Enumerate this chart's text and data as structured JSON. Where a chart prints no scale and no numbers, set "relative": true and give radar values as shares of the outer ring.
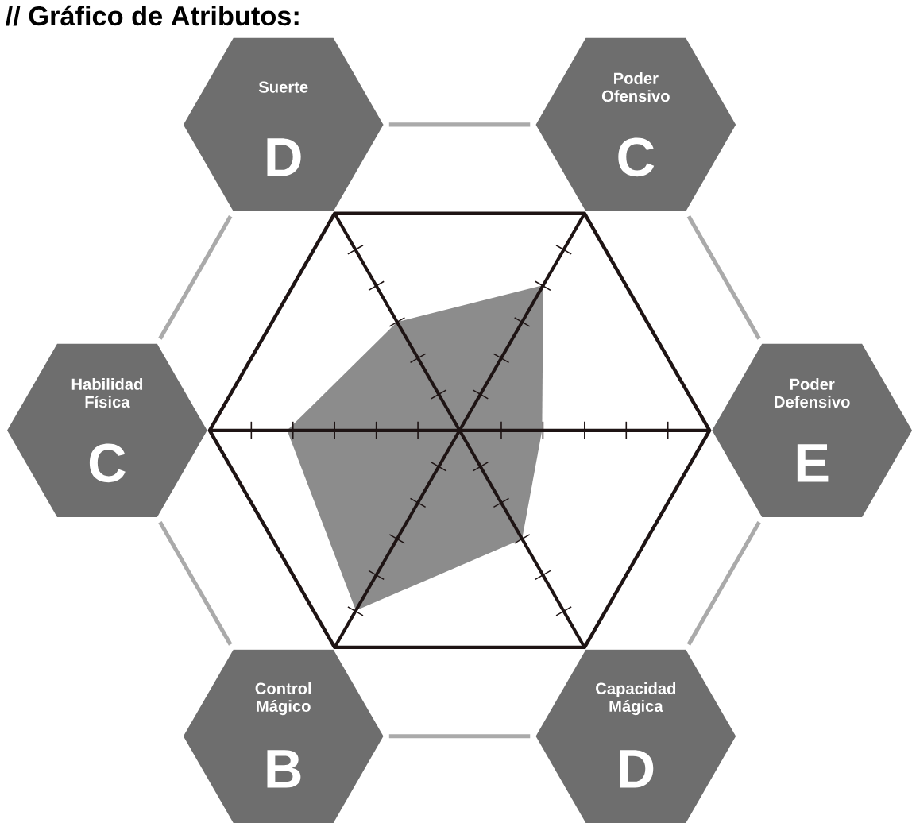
{
  "chart_data": {
    "type": "radar",
    "title": "// Gráfico de Atributos:",
    "categories": [
      "Suerte",
      "Poder Ofensivo",
      "Poder Defensivo",
      "Capacidad Mágica",
      "Control Mágico",
      "Habilidad Física"
    ],
    "relative": true,
    "annotations": [
      "D",
      "C",
      "E",
      "D",
      "B",
      "C"
    ],
    "series": [
      {
        "color": "#8c8c8c",
        "values": [
          0.5,
          0.67,
          0.33,
          0.5,
          0.83,
          0.69
        ]
      }
    ]
  }
}
